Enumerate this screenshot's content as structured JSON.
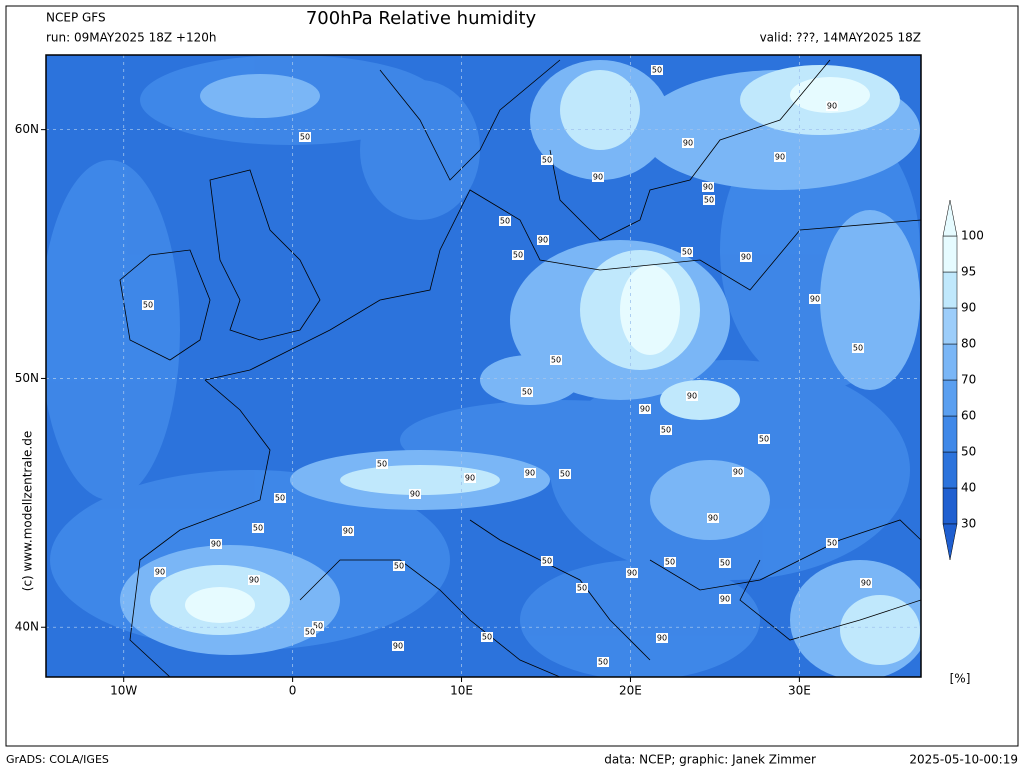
{
  "header": {
    "model": "NCEP GFS",
    "run": "run: 09MAY2025 18Z +120h",
    "title": "700hPa Relative humidity",
    "valid": "valid: ???, 14MAY2025 18Z"
  },
  "map": {
    "lonlim": [
      -14.6,
      37.2
    ],
    "latlim": [
      38.0,
      63.0
    ],
    "lonticks": [
      {
        "value": -10,
        "label": "10W"
      },
      0,
      {
        "value": 10,
        "label": "10E"
      },
      {
        "value": 20,
        "label": "20E"
      },
      {
        "value": 30,
        "label": "30E"
      }
    ],
    "latticks": [
      {
        "value": 40,
        "label": "40N"
      },
      {
        "value": 50,
        "label": "50N"
      },
      {
        "value": 60,
        "label": "60N"
      }
    ],
    "grid": true,
    "contour_labels": [
      50,
      50,
      50,
      90,
      90,
      90,
      90,
      90,
      50,
      50,
      90,
      50,
      50,
      90,
      50,
      90,
      50,
      50,
      50,
      90,
      90,
      50,
      50,
      50,
      90,
      90,
      50,
      90,
      90,
      50,
      90,
      50,
      90,
      90,
      50,
      50,
      50,
      50,
      50,
      90,
      90,
      90,
      50,
      90,
      90,
      50,
      50,
      50,
      90,
      90,
      50
    ]
  },
  "colorbar": {
    "levels": [
      30,
      40,
      50,
      60,
      70,
      80,
      90,
      95,
      100
    ],
    "colors": [
      "#1f5fd0",
      "#2c73dc",
      "#3f88e8",
      "#5a9ff0",
      "#7ab6f6",
      "#9ccdfa",
      "#c0e8fc",
      "#e6fbff"
    ],
    "unit": "[%]"
  },
  "watermark": "(c) www.modellzentrale.de",
  "footer": {
    "software": "GrADS: COLA/IGES",
    "credit": "data: NCEP; graphic: Janek Zimmer",
    "timestamp": "2025-05-10-00:19"
  }
}
